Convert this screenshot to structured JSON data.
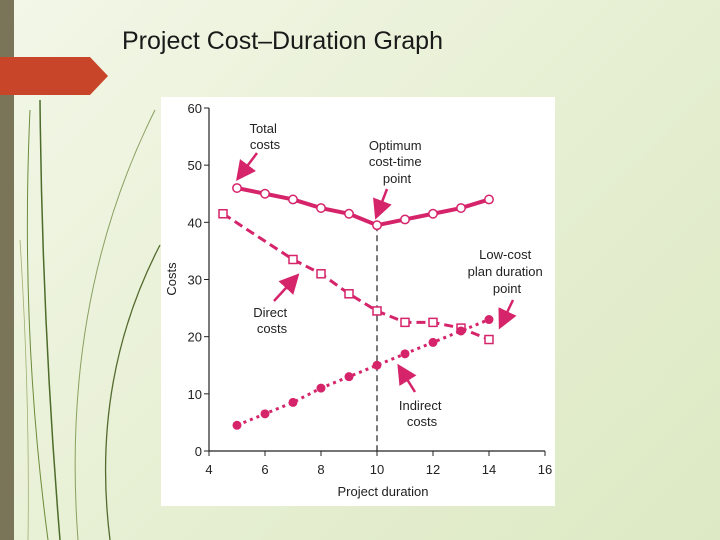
{
  "slide": {
    "title": "Project Cost–Duration Graph"
  },
  "colors": {
    "accent": "#c8452a",
    "series": "#d6246b",
    "axis": "#222222"
  },
  "chart_data": {
    "type": "line",
    "xlabel": "Project duration",
    "ylabel": "Costs",
    "xlim": [
      4,
      16
    ],
    "ylim": [
      0,
      60
    ],
    "xticks": [
      4,
      6,
      8,
      10,
      12,
      14,
      16
    ],
    "yticks": [
      0,
      10,
      20,
      30,
      40,
      50,
      60
    ],
    "grid": false,
    "series": [
      {
        "name": "Total costs",
        "marker": "open-circle",
        "line": "solid",
        "x": [
          5,
          6,
          7,
          8,
          9,
          10,
          11,
          12,
          13,
          14
        ],
        "y": [
          46,
          45,
          44,
          42.5,
          41.5,
          39.5,
          40.5,
          41.5,
          42.5,
          44
        ]
      },
      {
        "name": "Direct costs",
        "marker": "open-square",
        "line": "dashed",
        "x": [
          4.5,
          7,
          8,
          9,
          10,
          11,
          12,
          13,
          14
        ],
        "y": [
          41.5,
          33.5,
          31,
          27.5,
          24.5,
          22.5,
          22.5,
          21.5,
          19.5
        ]
      },
      {
        "name": "Indirect costs",
        "marker": "filled-circle",
        "line": "dotted",
        "x": [
          5,
          6,
          7,
          8,
          9,
          10,
          11,
          12,
          13,
          14
        ],
        "y": [
          4.5,
          6.5,
          8.5,
          11,
          13,
          15,
          17,
          19,
          21,
          23
        ]
      }
    ],
    "annotations": [
      {
        "text": [
          "Total",
          "costs"
        ]
      },
      {
        "text": [
          "Optimum",
          "cost-time",
          "point"
        ]
      },
      {
        "text": [
          "Low-cost",
          "plan duration",
          "point"
        ]
      },
      {
        "text": [
          "Direct",
          "costs"
        ]
      },
      {
        "text": [
          "Indirect",
          "costs"
        ]
      }
    ],
    "reference_line": {
      "x": 10,
      "style": "dashed"
    }
  }
}
